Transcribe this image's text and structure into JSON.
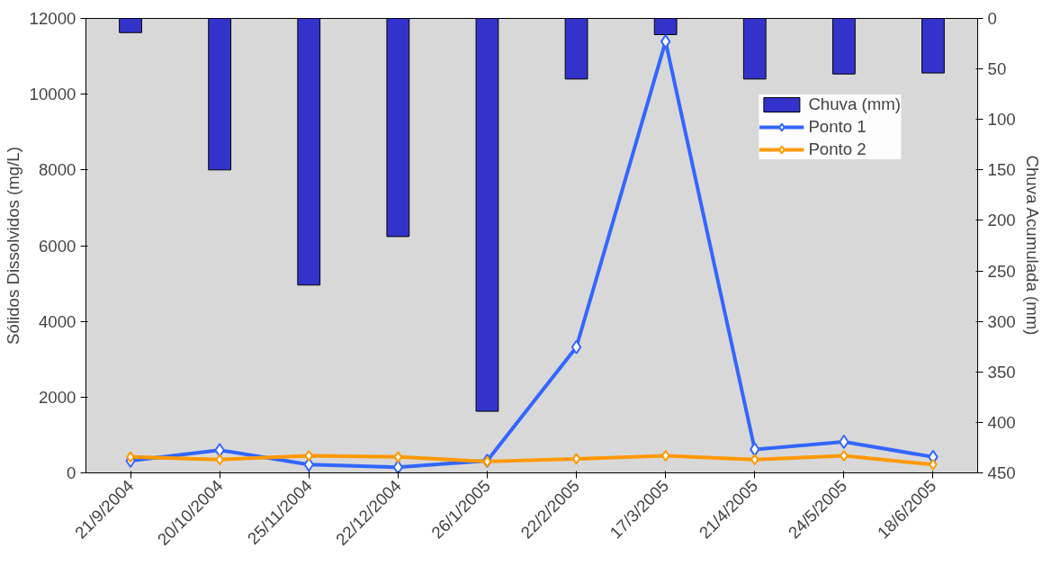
{
  "chart_data": {
    "type": "line",
    "ylabel": "Sólidos Dissolvidos (mg/L)",
    "y2label": "Chuva Acumulada (mm)",
    "categories": [
      "21/9/2004",
      "20/10/2004",
      "25/11/2004",
      "22/12/2004",
      "26/1/2005",
      "22/2/2005",
      "17/3/2005",
      "21/4/2005",
      "24/5/2005",
      "18/6/2005"
    ],
    "series": [
      {
        "name": "Chuva (mm)",
        "type": "bar",
        "axis": "y2",
        "color": "#3333cc",
        "values": [
          14,
          150,
          264,
          216,
          389,
          60,
          16,
          60,
          55,
          54
        ]
      },
      {
        "name": "Ponto 1",
        "color": "#3366ff",
        "values": [
          320,
          600,
          220,
          150,
          320,
          3320,
          11390,
          620,
          820,
          420
        ]
      },
      {
        "name": "Ponto 2",
        "color": "#ff9900",
        "values": [
          420,
          350,
          450,
          420,
          300,
          370,
          450,
          350,
          450,
          220
        ]
      }
    ],
    "ylim": [
      0,
      12000
    ],
    "yticks": [
      0,
      2000,
      4000,
      6000,
      8000,
      10000,
      12000
    ],
    "y2lim": [
      450,
      0
    ],
    "y2ticks": [
      0,
      50,
      100,
      150,
      200,
      250,
      300,
      350,
      400,
      450
    ],
    "marker": "diamond",
    "grid": false,
    "legend": "top right"
  }
}
